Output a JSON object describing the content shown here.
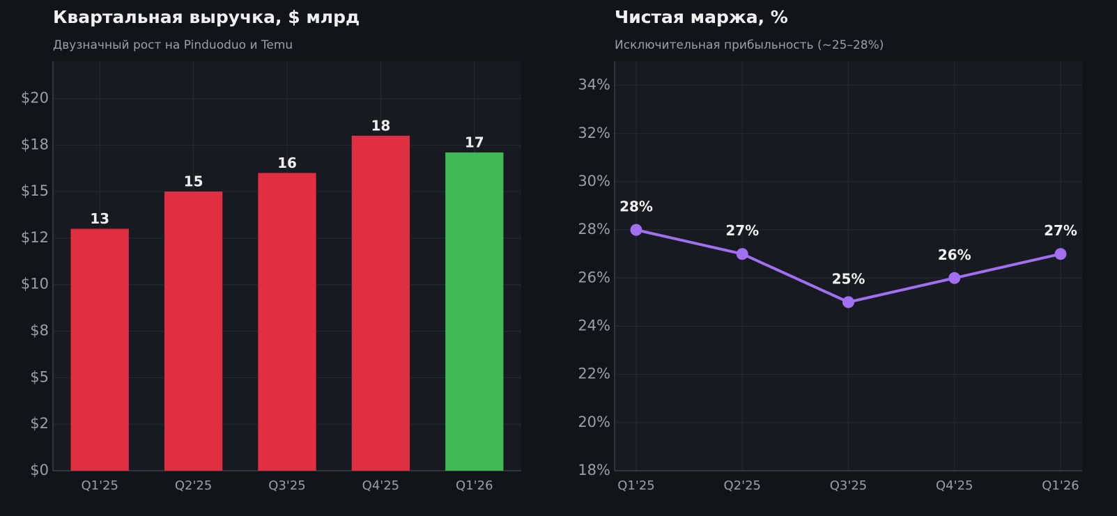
{
  "chart_data": [
    {
      "type": "bar",
      "title": "Квартальная выручка, $ млрд",
      "subtitle": "Двузначный рост на Pinduoduo и Temu",
      "categories": [
        "Q1'25",
        "Q2'25",
        "Q3'25",
        "Q4'25",
        "Q1'26"
      ],
      "values": [
        13,
        15,
        16,
        18,
        17.1
      ],
      "value_labels": [
        "13",
        "15",
        "16",
        "18",
        "17"
      ],
      "colors": [
        "#e02f40",
        "#e02f40",
        "#e02f40",
        "#e02f40",
        "#3fba54"
      ],
      "ylim": [
        0,
        22
      ],
      "yticks": [
        {
          "value": 0,
          "label": "$0"
        },
        {
          "value": 2.5,
          "label": "$2"
        },
        {
          "value": 5,
          "label": "$5"
        },
        {
          "value": 7.5,
          "label": "$8"
        },
        {
          "value": 10,
          "label": "$10"
        },
        {
          "value": 12.5,
          "label": "$12"
        },
        {
          "value": 15,
          "label": "$15"
        },
        {
          "value": 17.5,
          "label": "$18"
        },
        {
          "value": 20,
          "label": "$20"
        }
      ],
      "grid": true
    },
    {
      "type": "line",
      "title": "Чистая маржа, %",
      "subtitle": "Исключительная прибыльность (~25–28%)",
      "categories": [
        "Q1'25",
        "Q2'25",
        "Q3'25",
        "Q4'25",
        "Q1'26"
      ],
      "values": [
        28,
        27,
        25,
        26,
        27
      ],
      "value_labels": [
        "28%",
        "27%",
        "25%",
        "26%",
        "27%"
      ],
      "color": "#a070f0",
      "ylim": [
        18,
        35
      ],
      "yticks": [
        {
          "value": 18,
          "label": "18%"
        },
        {
          "value": 20,
          "label": "20%"
        },
        {
          "value": 22,
          "label": "22%"
        },
        {
          "value": 24,
          "label": "24%"
        },
        {
          "value": 26,
          "label": "26%"
        },
        {
          "value": 28,
          "label": "28%"
        },
        {
          "value": 30,
          "label": "30%"
        },
        {
          "value": 32,
          "label": "32%"
        },
        {
          "value": 34,
          "label": "34%"
        }
      ],
      "grid": true
    }
  ]
}
